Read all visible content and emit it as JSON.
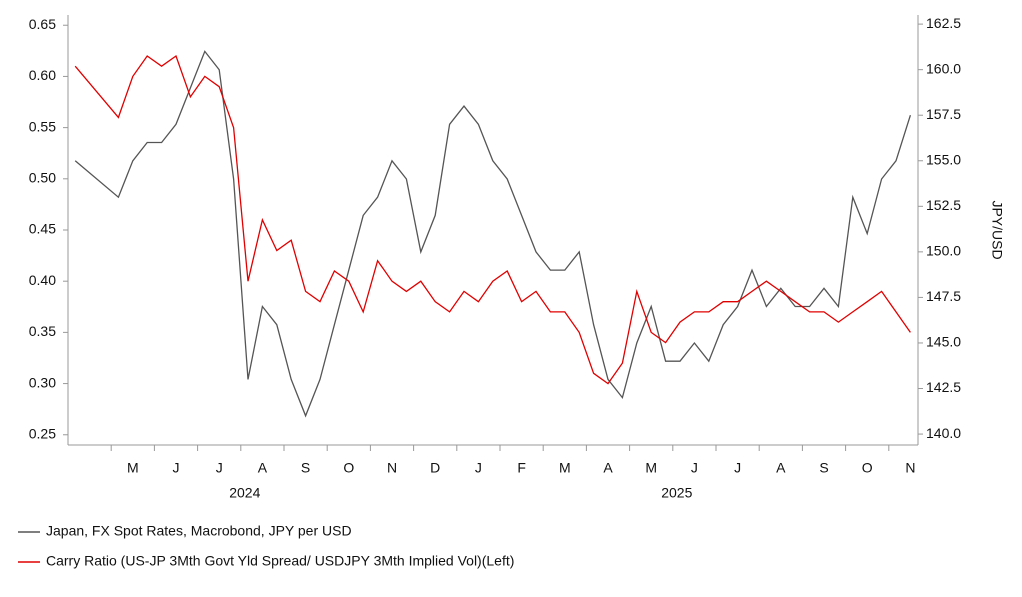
{
  "chart_data": {
    "type": "line",
    "categories": [
      "M",
      "J",
      "J",
      "A",
      "S",
      "O",
      "N",
      "D",
      "J",
      "F",
      "M",
      "A",
      "M",
      "J",
      "J",
      "A",
      "S",
      "O",
      "N"
    ],
    "year_labels": [
      "2024",
      "2025"
    ],
    "x": [
      "2024-04",
      "2024-05",
      "2024-05",
      "2024-05",
      "2024-06",
      "2024-06",
      "2024-06",
      "2024-07",
      "2024-07",
      "2024-07",
      "2024-08",
      "2024-08",
      "2024-08",
      "2024-09",
      "2024-09",
      "2024-09",
      "2024-10",
      "2024-10",
      "2024-10",
      "2024-11",
      "2024-11",
      "2024-11",
      "2024-12",
      "2024-12",
      "2024-12",
      "2025-01",
      "2025-01",
      "2025-01",
      "2025-02",
      "2025-02",
      "2025-02",
      "2025-03",
      "2025-03",
      "2025-03",
      "2025-04",
      "2025-04",
      "2025-04",
      "2025-05",
      "2025-05",
      "2025-05",
      "2025-06",
      "2025-06",
      "2025-06",
      "2025-07",
      "2025-07",
      "2025-07",
      "2025-08",
      "2025-08",
      "2025-08",
      "2025-09",
      "2025-09",
      "2025-09",
      "2025-10",
      "2025-10",
      "2025-10",
      "2025-11",
      "2025-11"
    ],
    "series": [
      {
        "name": "Japan, FX Spot Rates, Macrobond, JPY per USD",
        "color": "#555555",
        "axis": "y2",
        "values": [
          155,
          153,
          155,
          156,
          156,
          157,
          159,
          161,
          160,
          154,
          143,
          147,
          146,
          143,
          141,
          143,
          146,
          149,
          152,
          153,
          155,
          154,
          150,
          152,
          157,
          158,
          157,
          155,
          154,
          152,
          150,
          149,
          149,
          150,
          146,
          143,
          142,
          145,
          147,
          144,
          144,
          145,
          144,
          146,
          147,
          149,
          147,
          148,
          147,
          147,
          148,
          147,
          153,
          151,
          154,
          155,
          157.5
        ]
      },
      {
        "name": "Carry Ratio (US-JP 3Mth Govt Yld Spread/ USDJPY 3Mth Implied Vol)(Left)",
        "color": "#e00000",
        "values": [
          0.61,
          0.56,
          0.6,
          0.62,
          0.61,
          0.62,
          0.58,
          0.6,
          0.59,
          0.55,
          0.4,
          0.46,
          0.43,
          0.44,
          0.39,
          0.38,
          0.41,
          0.4,
          0.37,
          0.42,
          0.4,
          0.39,
          0.4,
          0.38,
          0.37,
          0.39,
          0.38,
          0.4,
          0.41,
          0.38,
          0.39,
          0.37,
          0.37,
          0.35,
          0.31,
          0.3,
          0.32,
          0.39,
          0.35,
          0.34,
          0.36,
          0.37,
          0.37,
          0.38,
          0.38,
          0.39,
          0.4,
          0.39,
          0.38,
          0.37,
          0.37,
          0.36,
          0.37,
          0.38,
          0.39,
          0.37,
          0.35
        ]
      }
    ],
    "ylim": [
      0.24,
      0.66
    ],
    "yticks": [
      0.25,
      {
        "value": 0.3,
        "label": "0.30"
      },
      0.35,
      {
        "value": 0.4,
        "label": "0.40"
      },
      0.45,
      {
        "value": 0.5,
        "label": "0.50"
      },
      0.55,
      {
        "value": 0.6,
        "label": "0.60"
      },
      0.65
    ],
    "y2lim": [
      139.4,
      163.0
    ],
    "y2ticks": [
      {
        "value": 140,
        "label": "140.0"
      },
      142.5,
      {
        "value": 145,
        "label": "145.0"
      },
      147.5,
      {
        "value": 150,
        "label": "150.0"
      },
      152.5,
      {
        "value": 155,
        "label": "155.0"
      },
      157.5,
      {
        "value": 160,
        "label": "160.0"
      },
      162.5
    ],
    "y2label": "JPY/USD",
    "grid": false
  }
}
